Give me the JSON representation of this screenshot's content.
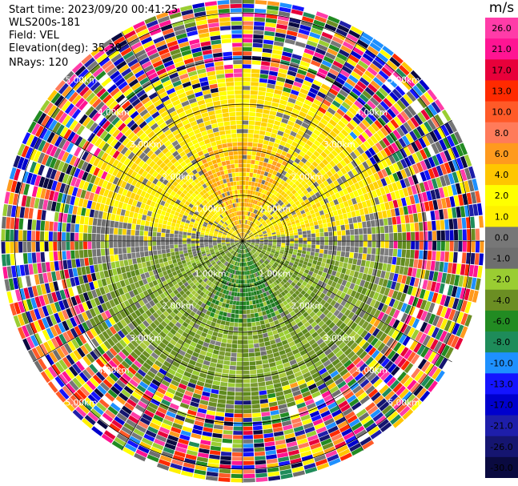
{
  "header": {
    "start_time": "Start time: 2023/09/20 00:41:25",
    "instrument": "WLS200s-181",
    "field": "Field: VEL",
    "elevation": "Elevation(deg): 35.30",
    "nrays": "NRays: 120"
  },
  "chart_data": {
    "type": "heatmap",
    "projection": "polar-ppi",
    "rays": 120,
    "range_rings_km": [
      1.0,
      2.0,
      3.0,
      4.0,
      5.0
    ],
    "ring_labels": [
      "1.00km",
      "2.00km",
      "3.00km",
      "4.00km",
      "5.00km"
    ],
    "max_range_km": 5.3,
    "grid": true,
    "field_units": "m/s",
    "colorbar_labels": [
      "26.0",
      "21.0",
      "17.0",
      "13.0",
      "10.0",
      "8.0",
      "6.0",
      "4.0",
      "2.0",
      "1.0",
      "0.0",
      "-1.0",
      "-2.0",
      "-4.0",
      "-6.0",
      "-8.0",
      "-10.0",
      "-13.0",
      "-17.0",
      "-21.0",
      "-26.0",
      "-30.0"
    ],
    "colorbar_colors": [
      "#ff3ca8",
      "#ff1493",
      "#e8003a",
      "#ff2a00",
      "#ff5a28",
      "#ff7b5a",
      "#ff9a1e",
      "#ffc600",
      "#ffff00",
      "#fff000",
      "#777777",
      "#6e6e6e",
      "#9acd32",
      "#6b8e23",
      "#228b22",
      "#1e8c5a",
      "#1e90ff",
      "#1414ff",
      "#0000cd",
      "#1e1eaa",
      "#151570",
      "#0a0a40"
    ]
  }
}
